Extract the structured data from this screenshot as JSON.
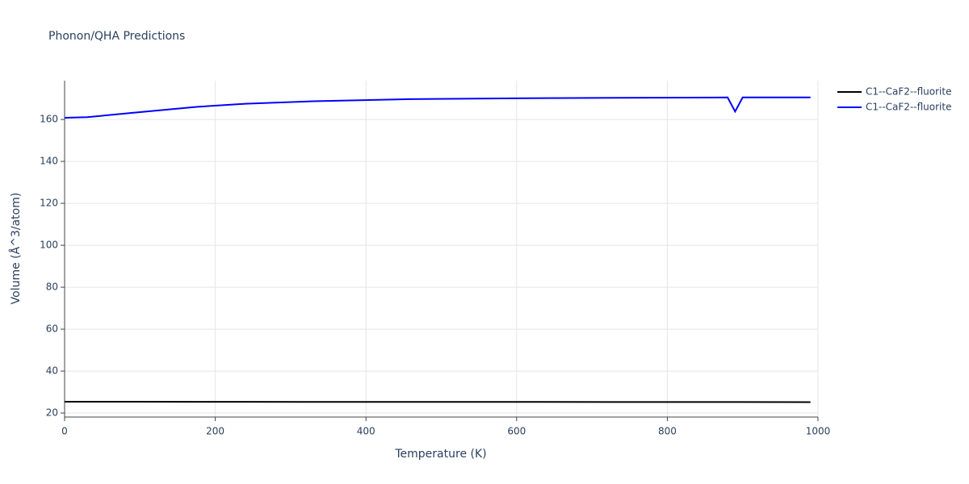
{
  "chart_data": {
    "type": "line",
    "title": "Phonon/QHA Predictions",
    "x_label": "Temperature (K)",
    "y_label": "Volume (Å^3/atom)",
    "x": [
      0,
      30,
      100,
      175,
      240,
      330,
      460,
      640,
      880,
      890,
      900,
      990
    ],
    "series": [
      {
        "name": "C1--CaF2--fluorite",
        "color": "#000000",
        "values": [
          25.4,
          25.4,
          25.4,
          25.35,
          25.35,
          25.3,
          25.3,
          25.3,
          25.25,
          25.25,
          25.25,
          25.2
        ]
      },
      {
        "name": "C1--CaF2--fluorite",
        "color": "#0000ff",
        "values": [
          160.8,
          161.1,
          163.5,
          166,
          167.5,
          168.7,
          169.7,
          170.2,
          170.5,
          163.8,
          170.5,
          170.5
        ]
      }
    ],
    "xlim": [
      0,
      1000
    ],
    "xticks": [
      0,
      200,
      400,
      600,
      800,
      1000
    ],
    "ylim": [
      18.1,
      178.5
    ],
    "yticks": [
      20,
      40,
      60,
      80,
      100,
      120,
      140,
      160
    ],
    "grid": true,
    "legend": "right"
  }
}
